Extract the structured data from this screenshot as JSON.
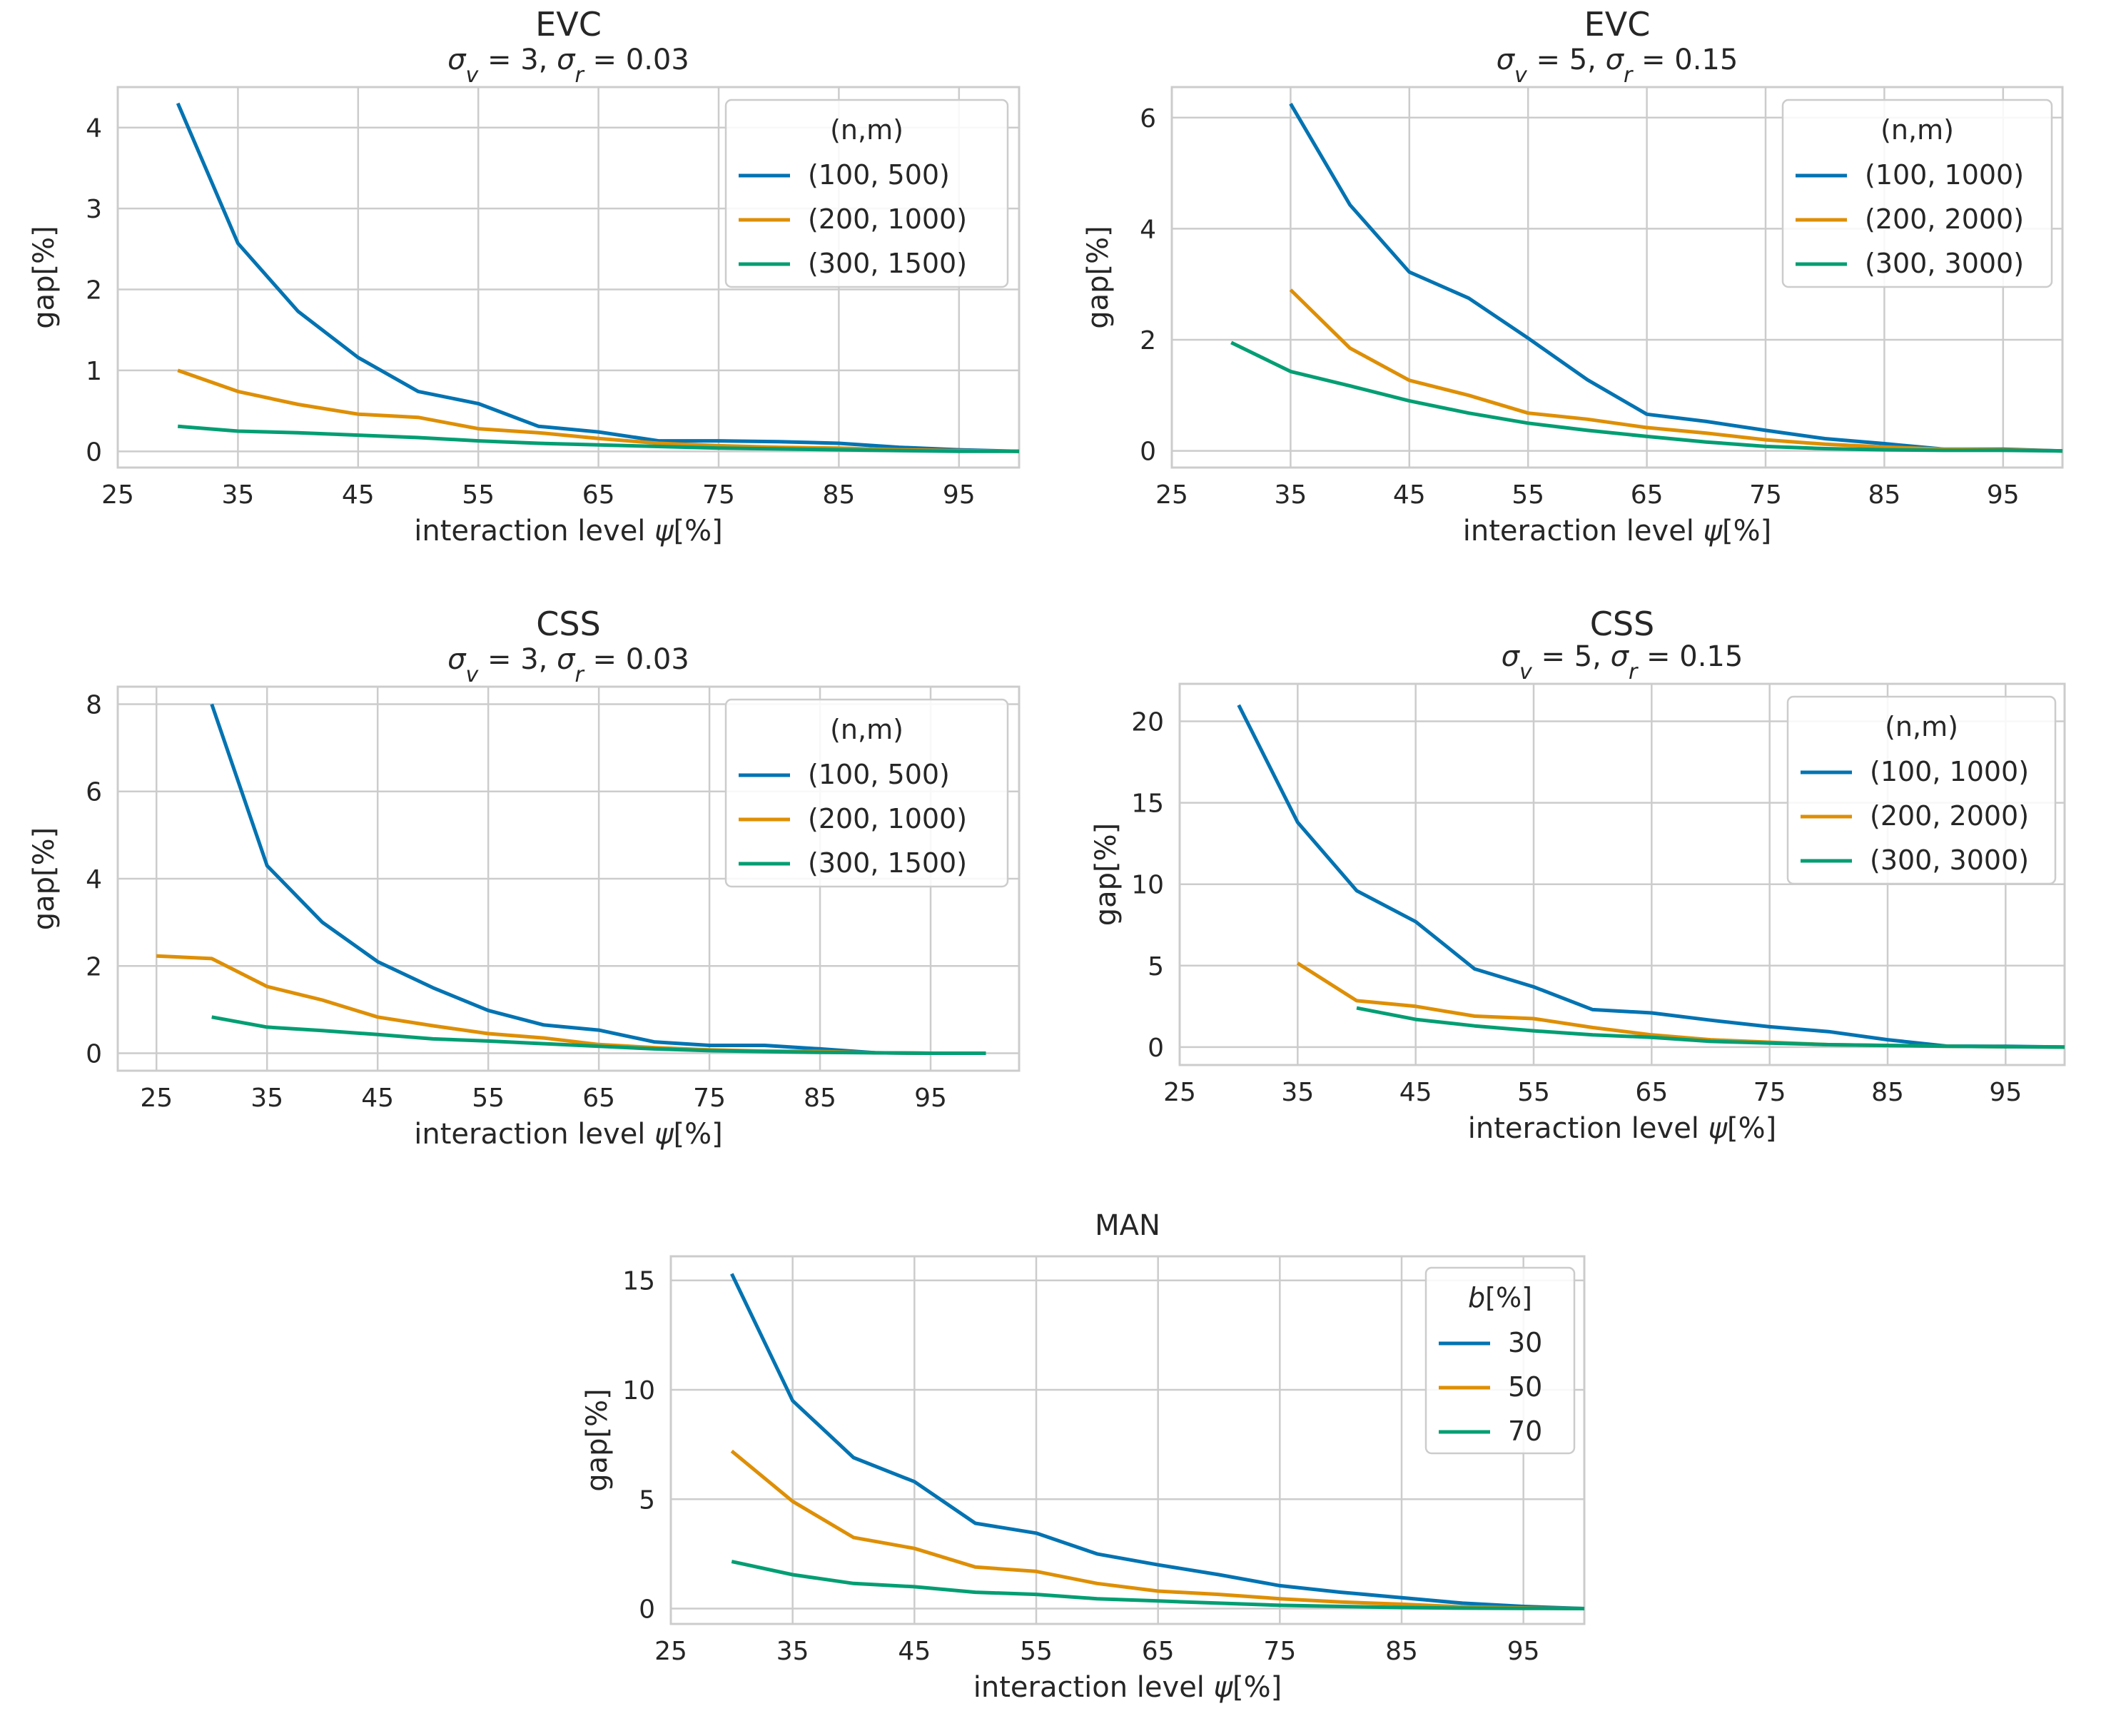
{
  "figure": {
    "panels": [
      {
        "id": "evc-left",
        "title": "EVC",
        "subtitle": "σv = 3, σr = 0.03"
      },
      {
        "id": "evc-right",
        "title": "EVC",
        "subtitle": "σv = 5, σr = 0.15"
      },
      {
        "id": "css-left",
        "title": "CSS",
        "subtitle": "σv = 3, σr = 0.03"
      },
      {
        "id": "css-right",
        "title": "CSS",
        "subtitle": "σv = 5, σr = 0.15"
      },
      {
        "id": "man",
        "title": "MAN",
        "subtitle": ""
      }
    ]
  },
  "chart_data": [
    {
      "type": "line",
      "title": "EVC",
      "subtitle": "σv = 3, σr = 0.03",
      "xlabel": "interaction level ψ[%]",
      "ylabel": "gap[%]",
      "xlim": [
        25,
        100
      ],
      "ylim": [
        -0.2,
        4.5
      ],
      "xticks": [
        25,
        35,
        45,
        55,
        65,
        75,
        85,
        95
      ],
      "yticks": [
        0,
        1,
        2,
        3,
        4
      ],
      "legend_title": "(n,m)",
      "legend_position": "top-right",
      "grid": true,
      "series": [
        {
          "name": "(100, 500)",
          "color": "#0173b2",
          "x": [
            30,
            35,
            40,
            45,
            50,
            55,
            60,
            65,
            70,
            75,
            80,
            85,
            90,
            95,
            100
          ],
          "y": [
            4.3,
            2.57,
            1.73,
            1.16,
            0.74,
            0.59,
            0.31,
            0.24,
            0.13,
            0.13,
            0.12,
            0.1,
            0.05,
            0.02,
            0.0
          ]
        },
        {
          "name": "(200, 1000)",
          "color": "#de8f05",
          "x": [
            30,
            35,
            40,
            45,
            50,
            55,
            60,
            65,
            70,
            75,
            80,
            85,
            90,
            95,
            100
          ],
          "y": [
            1.0,
            0.74,
            0.58,
            0.46,
            0.42,
            0.28,
            0.23,
            0.16,
            0.1,
            0.07,
            0.05,
            0.04,
            0.02,
            0.01,
            0.0
          ]
        },
        {
          "name": "(300, 1500)",
          "color": "#029e73",
          "x": [
            30,
            35,
            40,
            45,
            50,
            55,
            60,
            65,
            70,
            75,
            80,
            85,
            90,
            95,
            100
          ],
          "y": [
            0.31,
            0.25,
            0.23,
            0.2,
            0.17,
            0.13,
            0.1,
            0.08,
            0.06,
            0.04,
            0.03,
            0.02,
            0.01,
            0.0,
            0.0
          ]
        }
      ]
    },
    {
      "type": "line",
      "title": "EVC",
      "subtitle": "σv = 5, σr = 0.15",
      "xlabel": "interaction level ψ[%]",
      "ylabel": "gap[%]",
      "xlim": [
        25,
        100
      ],
      "ylim": [
        -0.3,
        6.55
      ],
      "xticks": [
        25,
        35,
        45,
        55,
        65,
        75,
        85,
        95
      ],
      "yticks": [
        0,
        2,
        4,
        6
      ],
      "legend_title": "(n,m)",
      "legend_position": "top-right",
      "grid": true,
      "series": [
        {
          "name": "(100, 1000)",
          "color": "#0173b2",
          "x": [
            35,
            40,
            45,
            50,
            55,
            60,
            65,
            70,
            75,
            80,
            85,
            90,
            95,
            100
          ],
          "y": [
            6.25,
            4.43,
            3.22,
            2.75,
            2.03,
            1.28,
            0.66,
            0.53,
            0.37,
            0.22,
            0.13,
            0.03,
            0.03,
            0.0
          ]
        },
        {
          "name": "(200, 2000)",
          "color": "#de8f05",
          "x": [
            35,
            40,
            45,
            50,
            55,
            60,
            65,
            70,
            75,
            80,
            85,
            90,
            95,
            100
          ],
          "y": [
            2.9,
            1.85,
            1.27,
            1.0,
            0.68,
            0.57,
            0.42,
            0.32,
            0.2,
            0.12,
            0.07,
            0.03,
            0.02,
            0.0
          ]
        },
        {
          "name": "(300, 3000)",
          "color": "#029e73",
          "x": [
            30,
            35,
            40,
            45,
            50,
            55,
            60,
            65,
            70,
            75,
            80,
            85,
            90,
            95,
            100
          ],
          "y": [
            1.95,
            1.43,
            1.17,
            0.9,
            0.68,
            0.5,
            0.37,
            0.26,
            0.16,
            0.08,
            0.04,
            0.02,
            0.01,
            0.01,
            0.0
          ]
        }
      ]
    },
    {
      "type": "line",
      "title": "CSS",
      "subtitle": "σv = 3, σr = 0.03",
      "xlabel": "interaction level ψ[%]",
      "ylabel": "gap[%]",
      "xlim": [
        21.5,
        103
      ],
      "ylim": [
        -0.4,
        8.4
      ],
      "xticks": [
        25,
        35,
        45,
        55,
        65,
        75,
        85,
        95
      ],
      "yticks": [
        0,
        2,
        4,
        6,
        8
      ],
      "legend_title": "(n,m)",
      "legend_position": "top-right",
      "grid": true,
      "series": [
        {
          "name": "(100, 500)",
          "color": "#0173b2",
          "x": [
            30,
            35,
            40,
            45,
            50,
            55,
            60,
            65,
            70,
            75,
            80,
            85,
            90,
            95,
            100
          ],
          "y": [
            8.0,
            4.3,
            3.0,
            2.1,
            1.5,
            0.98,
            0.65,
            0.53,
            0.26,
            0.18,
            0.18,
            0.1,
            0.01,
            0.0,
            0.0
          ]
        },
        {
          "name": "(200, 1000)",
          "color": "#de8f05",
          "x": [
            25,
            30,
            35,
            40,
            45,
            50,
            55,
            60,
            65,
            70,
            75,
            80,
            85,
            90,
            95,
            100
          ],
          "y": [
            2.23,
            2.17,
            1.53,
            1.22,
            0.83,
            0.63,
            0.45,
            0.35,
            0.2,
            0.13,
            0.08,
            0.05,
            0.04,
            0.01,
            0.0,
            0.0
          ]
        },
        {
          "name": "(300, 1500)",
          "color": "#029e73",
          "x": [
            30,
            35,
            40,
            45,
            50,
            55,
            60,
            65,
            70,
            75,
            80,
            85,
            90,
            95,
            100
          ],
          "y": [
            0.83,
            0.6,
            0.52,
            0.43,
            0.33,
            0.28,
            0.22,
            0.16,
            0.1,
            0.06,
            0.04,
            0.02,
            0.01,
            0.0,
            0.0
          ]
        }
      ]
    },
    {
      "type": "line",
      "title": "CSS",
      "subtitle": "σv = 5, σr = 0.15",
      "xlabel": "interaction level ψ[%]",
      "ylabel": "gap[%]",
      "xlim": [
        25,
        100
      ],
      "ylim": [
        -1.1,
        22.3
      ],
      "xticks": [
        25,
        35,
        45,
        55,
        65,
        75,
        85,
        95
      ],
      "yticks": [
        0,
        5,
        10,
        15,
        20
      ],
      "legend_title": "(n,m)",
      "legend_position": "top-right",
      "grid": true,
      "series": [
        {
          "name": "(100, 1000)",
          "color": "#0173b2",
          "x": [
            30,
            35,
            40,
            45,
            50,
            55,
            60,
            65,
            70,
            75,
            80,
            85,
            90,
            95,
            100
          ],
          "y": [
            21.0,
            13.8,
            9.6,
            7.7,
            4.8,
            3.7,
            2.3,
            2.1,
            1.65,
            1.25,
            0.95,
            0.45,
            0.06,
            0.05,
            0.0
          ]
        },
        {
          "name": "(200, 2000)",
          "color": "#de8f05",
          "x": [
            35,
            40,
            45,
            50,
            55,
            60,
            65,
            70,
            75,
            80,
            85,
            90,
            95,
            100
          ],
          "y": [
            5.15,
            2.85,
            2.5,
            1.9,
            1.75,
            1.2,
            0.75,
            0.45,
            0.3,
            0.15,
            0.1,
            0.05,
            0.02,
            0.0
          ]
        },
        {
          "name": "(300, 3000)",
          "color": "#029e73",
          "x": [
            40,
            45,
            50,
            55,
            60,
            65,
            70,
            75,
            80,
            85,
            90,
            95,
            100
          ],
          "y": [
            2.4,
            1.7,
            1.3,
            1.0,
            0.75,
            0.6,
            0.35,
            0.25,
            0.15,
            0.1,
            0.05,
            0.02,
            0.0
          ]
        }
      ]
    },
    {
      "type": "line",
      "title": "MAN",
      "xlabel": "interaction level ψ[%]",
      "ylabel": "gap[%]",
      "xlim": [
        25,
        100
      ],
      "ylim": [
        -0.7,
        16.1
      ],
      "xticks": [
        25,
        35,
        45,
        55,
        65,
        75,
        85,
        95
      ],
      "yticks": [
        0,
        5,
        10,
        15
      ],
      "legend_title": "b[%]",
      "legend_position": "top-right",
      "grid": true,
      "series": [
        {
          "name": "30",
          "color": "#0173b2",
          "x": [
            30,
            35,
            40,
            45,
            50,
            55,
            60,
            65,
            70,
            75,
            80,
            85,
            90,
            95,
            100
          ],
          "y": [
            15.3,
            9.5,
            6.9,
            5.8,
            3.9,
            3.45,
            2.5,
            2.0,
            1.55,
            1.05,
            0.75,
            0.5,
            0.25,
            0.1,
            0.0
          ]
        },
        {
          "name": "50",
          "color": "#de8f05",
          "x": [
            30,
            35,
            40,
            45,
            50,
            55,
            60,
            65,
            70,
            75,
            80,
            85,
            90,
            95,
            100
          ],
          "y": [
            7.2,
            4.9,
            3.25,
            2.75,
            1.9,
            1.7,
            1.15,
            0.8,
            0.65,
            0.45,
            0.3,
            0.2,
            0.08,
            0.03,
            0.0
          ]
        },
        {
          "name": "70",
          "color": "#029e73",
          "x": [
            30,
            35,
            40,
            45,
            50,
            55,
            60,
            65,
            70,
            75,
            80,
            85,
            90,
            95,
            100
          ],
          "y": [
            2.15,
            1.55,
            1.15,
            1.0,
            0.75,
            0.65,
            0.45,
            0.35,
            0.25,
            0.15,
            0.1,
            0.05,
            0.02,
            0.01,
            0.0
          ]
        }
      ]
    }
  ]
}
